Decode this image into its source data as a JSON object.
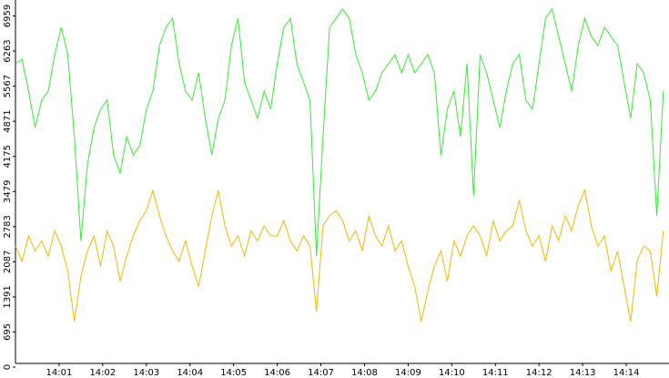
{
  "chart_data": {
    "type": "line",
    "x": [
      0,
      0.15,
      0.3,
      0.45,
      0.6,
      0.75,
      0.9,
      1.05,
      1.2,
      1.35,
      1.5,
      1.65,
      1.8,
      1.95,
      2.1,
      2.25,
      2.4,
      2.55,
      2.7,
      2.85,
      3,
      3.15,
      3.3,
      3.45,
      3.6,
      3.75,
      3.9,
      4.05,
      4.2,
      4.35,
      4.5,
      4.65,
      4.8,
      4.95,
      5.1,
      5.25,
      5.4,
      5.55,
      5.7,
      5.85,
      6,
      6.15,
      6.3,
      6.45,
      6.6,
      6.75,
      6.9,
      7.05,
      7.2,
      7.35,
      7.5,
      7.65,
      7.8,
      7.95,
      8.1,
      8.25,
      8.4,
      8.55,
      8.7,
      8.85,
      9,
      9.15,
      9.3,
      9.45,
      9.6,
      9.75,
      9.9,
      10.05,
      10.2,
      10.35,
      10.5,
      10.65,
      10.8,
      10.95,
      11.1,
      11.25,
      11.4,
      11.55,
      11.7,
      11.85,
      12,
      12.15,
      12.3,
      12.45,
      12.6,
      12.75,
      12.9,
      13.05,
      13.2,
      13.35,
      13.5,
      13.65,
      13.8,
      13.95,
      14.1,
      14.25,
      14.4,
      14.55,
      14.7,
      14.85
    ],
    "series": [
      {
        "color": "#33ee33",
        "values": [
          6011,
          6100,
          5469,
          4747,
          5289,
          5469,
          6191,
          6733,
          6191,
          4567,
          2500,
          4025,
          4747,
          5108,
          5289,
          4206,
          3845,
          4567,
          4206,
          4386,
          5108,
          5469,
          6372,
          6733,
          6913,
          6011,
          5469,
          5289,
          5830,
          4928,
          4206,
          4928,
          5289,
          6372,
          6913,
          5650,
          5289,
          4928,
          5469,
          5108,
          6011,
          6733,
          6913,
          6011,
          5650,
          5289,
          2200,
          4567,
          6733,
          6913,
          7094,
          6913,
          6191,
          5830,
          5289,
          5469,
          5830,
          6011,
          6191,
          5830,
          6191,
          5830,
          6011,
          6191,
          5830,
          4206,
          5108,
          5469,
          4567,
          6011,
          3400,
          6191,
          5830,
          5289,
          4747,
          5469,
          6011,
          6191,
          5289,
          5108,
          6011,
          6913,
          7094,
          6552,
          6011,
          5469,
          6372,
          6913,
          6552,
          6372,
          6733,
          6552,
          6372,
          5650,
          4928,
          6011,
          5830,
          5289,
          3000,
          5469
        ]
      },
      {
        "color": "#f5b800",
        "values": [
          2400,
          2100,
          2600,
          2300,
          2500,
          2200,
          2700,
          2400,
          1900,
          900,
          1800,
          2300,
          2600,
          2000,
          2700,
          2400,
          1700,
          2200,
          2600,
          2900,
          3100,
          3500,
          3000,
          2600,
          2300,
          2100,
          2500,
          2000,
          1600,
          2300,
          3000,
          3500,
          2800,
          2400,
          2600,
          2200,
          2700,
          2500,
          2800,
          2600,
          2600,
          2900,
          2500,
          2300,
          2600,
          2400,
          1100,
          2800,
          3000,
          3100,
          2900,
          2500,
          2700,
          2300,
          3000,
          2600,
          2400,
          2800,
          2300,
          2500,
          2000,
          1600,
          900,
          1500,
          2000,
          2300,
          1700,
          2500,
          2200,
          2600,
          2800,
          2600,
          2200,
          2900,
          2500,
          2700,
          2800,
          3300,
          2700,
          2400,
          2600,
          2100,
          2800,
          2500,
          3000,
          2700,
          3200,
          3500,
          2800,
          2400,
          2600,
          1900,
          2300,
          1600,
          900,
          2100,
          2400,
          2300,
          1400,
          2700
        ]
      }
    ],
    "xlim": [
      0,
      15
    ],
    "xticks": [
      {
        "value": 1,
        "label": "14:01"
      },
      {
        "value": 2,
        "label": "14:02"
      },
      {
        "value": 3,
        "label": "14:03"
      },
      {
        "value": 4,
        "label": "14:04"
      },
      {
        "value": 5,
        "label": "14:05"
      },
      {
        "value": 6,
        "label": "14:06"
      },
      {
        "value": 7,
        "label": "14:07"
      },
      {
        "value": 8,
        "label": "14:08"
      },
      {
        "value": 9,
        "label": "14:09"
      },
      {
        "value": 10,
        "label": "14:10"
      },
      {
        "value": 11,
        "label": "14:11"
      },
      {
        "value": 12,
        "label": "14:12"
      },
      {
        "value": 13,
        "label": "14:13"
      },
      {
        "value": 14,
        "label": "14:14"
      }
    ],
    "ylim": [
      0,
      7275
    ],
    "yticks": [
      0,
      695,
      1391,
      2087,
      2783,
      3479,
      4175,
      4871,
      5567,
      6263,
      6959
    ]
  }
}
